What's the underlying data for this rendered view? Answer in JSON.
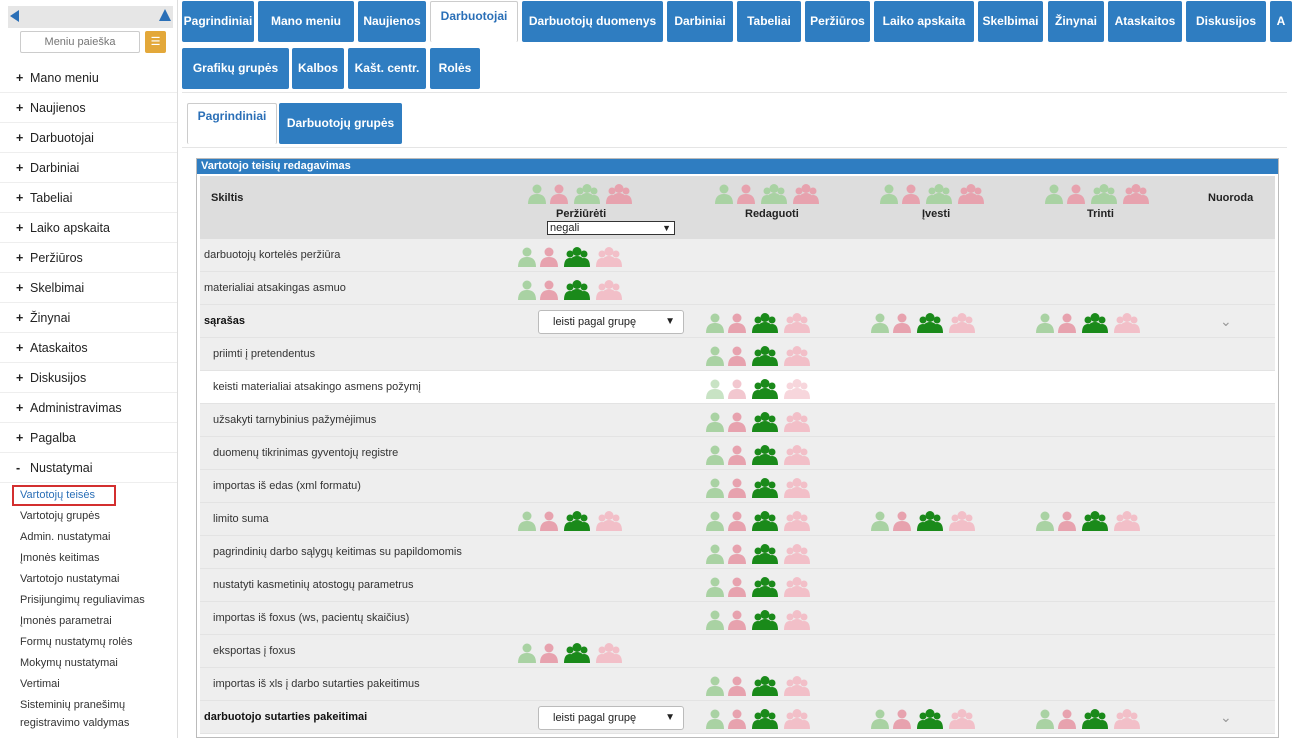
{
  "sidebar": {
    "search_placeholder": "Meniu paieška",
    "menu_icon": "list-icon",
    "items": [
      {
        "pm": "+",
        "label": "Mano meniu"
      },
      {
        "pm": "+",
        "label": "Naujienos"
      },
      {
        "pm": "+",
        "label": "Darbuotojai"
      },
      {
        "pm": "+",
        "label": "Darbiniai"
      },
      {
        "pm": "+",
        "label": "Tabeliai"
      },
      {
        "pm": "+",
        "label": "Laiko apskaita"
      },
      {
        "pm": "+",
        "label": "Peržiūros"
      },
      {
        "pm": "+",
        "label": "Skelbimai"
      },
      {
        "pm": "+",
        "label": "Žinynai"
      },
      {
        "pm": "+",
        "label": "Ataskaitos"
      },
      {
        "pm": "+",
        "label": "Diskusijos"
      },
      {
        "pm": "+",
        "label": "Administravimas"
      },
      {
        "pm": "+",
        "label": "Pagalba"
      },
      {
        "pm": "-",
        "label": "Nustatymai"
      }
    ],
    "subitems": [
      "Vartotojų teisės",
      "Vartotojų grupės",
      "Admin. nustatymai",
      "Įmonės keitimas",
      "Vartotojo nustatymai",
      "Prisijungimų reguliavimas",
      "Įmonės parametrai",
      "Formų nustatymų rolės",
      "Mokymų nustatymai",
      "Vertimai",
      "Sisteminių pranešimų",
      "registravimo valdymas"
    ]
  },
  "top_tabs": {
    "row1": [
      "Pagrindiniai",
      "Mano meniu",
      "Naujienos",
      "Darbuotojai",
      "Darbuotojų duomenys",
      "Darbiniai",
      "Tabeliai",
      "Peržiūros",
      "Laiko apskaita",
      "Skelbimai",
      "Žinynai",
      "Ataskaitos",
      "Diskusijos",
      "A"
    ],
    "row2": [
      "Grafikų grupės",
      "Kalbos",
      "Kašt. centr.",
      "Rolės"
    ]
  },
  "sub_tabs": [
    "Pagrindiniai",
    "Darbuotojų grupės"
  ],
  "panel": {
    "title": "Vartotojo teisių redagavimas",
    "columns": {
      "skiltis": "Skiltis",
      "perziureti": "Peržiūrėti",
      "redaguoti": "Redaguoti",
      "ivesti": "Įvesti",
      "trinti": "Trinti",
      "nuoroda": "Nuoroda"
    },
    "header_select": "negali",
    "rows": [
      {
        "label": "darbuotojų kortelės peržiūra",
        "bold": false,
        "indent": false,
        "select": "",
        "view": true,
        "edit": false,
        "add": false,
        "del": false,
        "chev": false,
        "white": false
      },
      {
        "label": "materialiai atsakingas asmuo",
        "bold": false,
        "indent": false,
        "select": "",
        "view": true,
        "edit": false,
        "add": false,
        "del": false,
        "chev": false,
        "white": false
      },
      {
        "label": "sąrašas",
        "bold": true,
        "indent": false,
        "select": "leisti pagal grupę",
        "view": false,
        "edit": true,
        "add": true,
        "del": true,
        "chev": true,
        "white": false
      },
      {
        "label": "priimti į pretendentus",
        "bold": false,
        "indent": true,
        "select": "",
        "view": false,
        "edit": true,
        "add": false,
        "del": false,
        "chev": false,
        "white": false
      },
      {
        "label": "keisti materialiai atsakingo asmens požymį",
        "bold": false,
        "indent": true,
        "select": "",
        "view": false,
        "edit": true,
        "add": false,
        "del": false,
        "chev": false,
        "white": true
      },
      {
        "label": "užsakyti tarnybinius pažymėjimus",
        "bold": false,
        "indent": true,
        "select": "",
        "view": false,
        "edit": true,
        "add": false,
        "del": false,
        "chev": false,
        "white": false
      },
      {
        "label": "duomenų tikrinimas gyventojų registre",
        "bold": false,
        "indent": true,
        "select": "",
        "view": false,
        "edit": true,
        "add": false,
        "del": false,
        "chev": false,
        "white": false
      },
      {
        "label": "importas iš edas (xml formatu)",
        "bold": false,
        "indent": true,
        "select": "",
        "view": false,
        "edit": true,
        "add": false,
        "del": false,
        "chev": false,
        "white": false
      },
      {
        "label": "limito suma",
        "bold": false,
        "indent": true,
        "select": "",
        "view": true,
        "edit": true,
        "add": true,
        "del": true,
        "chev": false,
        "white": false
      },
      {
        "label": "pagrindinių darbo sąlygų keitimas su papildomomis",
        "bold": false,
        "indent": true,
        "select": "",
        "view": false,
        "edit": true,
        "add": false,
        "del": false,
        "chev": false,
        "white": false
      },
      {
        "label": "nustatyti kasmetinių atostogų parametrus",
        "bold": false,
        "indent": true,
        "select": "",
        "view": false,
        "edit": true,
        "add": false,
        "del": false,
        "chev": false,
        "white": false
      },
      {
        "label": "importas iš foxus (ws, pacientų skaičius)",
        "bold": false,
        "indent": true,
        "select": "",
        "view": false,
        "edit": true,
        "add": false,
        "del": false,
        "chev": false,
        "white": false
      },
      {
        "label": "eksportas į foxus",
        "bold": false,
        "indent": true,
        "select": "",
        "view": true,
        "edit": false,
        "add": false,
        "del": false,
        "chev": false,
        "white": false
      },
      {
        "label": "importas iš xls į darbo sutarties pakeitimus",
        "bold": false,
        "indent": true,
        "select": "",
        "view": false,
        "edit": true,
        "add": false,
        "del": false,
        "chev": false,
        "white": false
      },
      {
        "label": "darbuotojo sutarties pakeitimai",
        "bold": true,
        "indent": false,
        "select": "leisti pagal grupę",
        "view": false,
        "edit": true,
        "add": true,
        "del": true,
        "chev": true,
        "white": false
      }
    ]
  },
  "colors": {
    "accent": "#2f7dc1",
    "icon_green_light": "#a9d2a3",
    "icon_pink": "#e7a2ae",
    "icon_green_dark": "#1a8a1a",
    "icon_pink_light": "#f2bfc8"
  }
}
